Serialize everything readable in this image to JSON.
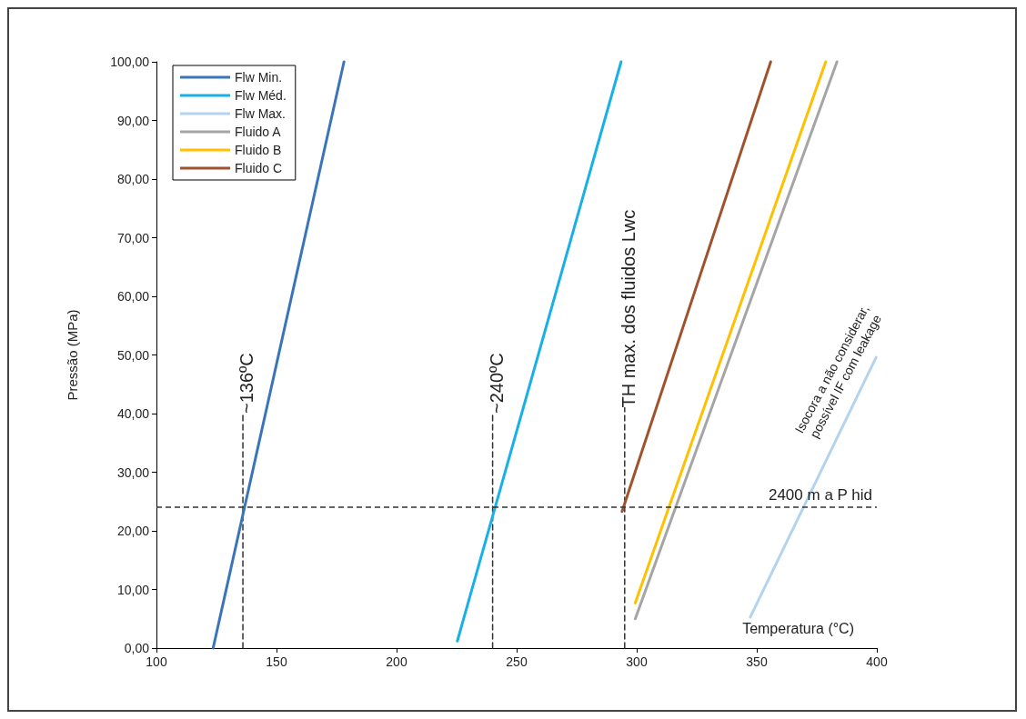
{
  "chart_data": {
    "type": "line",
    "xlabel": "Temperatura (°C)",
    "ylabel": "Pressão (MPa)",
    "xlim": [
      100,
      400
    ],
    "xticks": [
      100,
      150,
      200,
      250,
      300,
      350,
      400
    ],
    "ylim": [
      0,
      100
    ],
    "yticks": [
      {
        "value": 0,
        "label": "0,00"
      },
      {
        "value": 10,
        "label": "10,00"
      },
      {
        "value": 20,
        "label": "20,00"
      },
      {
        "value": 30,
        "label": "30,00"
      },
      {
        "value": 40,
        "label": "40,00"
      },
      {
        "value": 50,
        "label": "50,00"
      },
      {
        "value": 60,
        "label": "60,00"
      },
      {
        "value": 70,
        "label": "70,00"
      },
      {
        "value": 80,
        "label": "80,00"
      },
      {
        "value": 90,
        "label": "90,00"
      },
      {
        "value": 100,
        "label": "100,00"
      }
    ],
    "grid": false,
    "legend": "top left",
    "marker": "none",
    "line_style": "solid",
    "series": [
      {
        "name": "Flw Min.",
        "color": "#3b75b9",
        "x": [
          123.6,
          178.1
        ],
        "values": [
          0,
          100
        ]
      },
      {
        "name": "Flw Méd.",
        "color": "#18b0e6",
        "x": [
          225.3,
          293.5
        ],
        "values": [
          1.2,
          100
        ]
      },
      {
        "name": "Flw Max.",
        "color": "#b4d3ee",
        "x": [
          347.3,
          399.7
        ],
        "values": [
          5.3,
          49.6
        ]
      },
      {
        "name": "Fluido A",
        "color": "#a5a5a5",
        "x": [
          299.4,
          383.4
        ],
        "values": [
          5.0,
          100
        ]
      },
      {
        "name": "Fluido B",
        "color": "#ffc000",
        "x": [
          299.4,
          378.7
        ],
        "values": [
          7.7,
          100
        ]
      },
      {
        "name": "Fluido C",
        "color": "#a0522d",
        "x": [
          293.9,
          355.8
        ],
        "values": [
          23.3,
          100
        ]
      },
      {
        "name": "~136ºC",
        "color": "#333333",
        "line_style": "dashed",
        "x": [
          136,
          136
        ],
        "values": [
          0,
          40
        ]
      },
      {
        "name": "~240ºC",
        "color": "#333333",
        "line_style": "dashed",
        "x": [
          240,
          240
        ],
        "values": [
          0,
          40
        ]
      },
      {
        "name": "TH max. dos fluidos Lwc",
        "color": "#333333",
        "line_style": "dashed",
        "x": [
          295,
          295
        ],
        "values": [
          0,
          41
        ]
      }
    ],
    "ref_lines": [
      {
        "axis": "y",
        "value": 24,
        "label": "2400 m a P hid",
        "color": "#333333",
        "line_style": "dashed"
      }
    ],
    "annotations": [
      "Isocora a não considerar,\npossível IF com leakage"
    ]
  }
}
